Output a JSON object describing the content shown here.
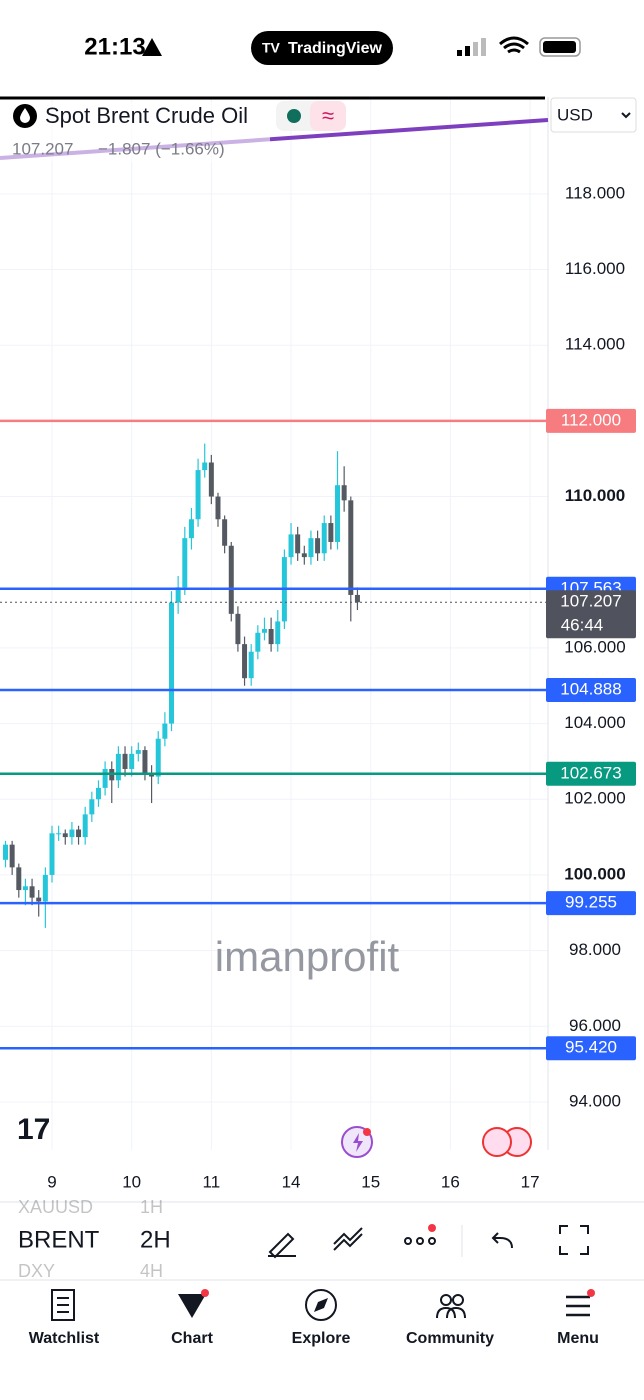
{
  "status_bar": {
    "time": "21:13",
    "app": "TradingView"
  },
  "header": {
    "symbol": "Spot Brent Crude Oil",
    "last": "107.207",
    "change": "−1.807 (−1.66%)",
    "currency": "USD"
  },
  "watermark": "imanprofit",
  "chart_data": {
    "type": "candlestick",
    "x": [
      -7,
      -6,
      -5,
      -4,
      -3,
      -2,
      -1,
      0,
      1,
      2,
      3,
      4,
      5,
      6,
      7,
      8,
      9,
      10,
      11,
      12,
      13,
      14,
      15,
      16,
      17,
      18,
      19,
      20,
      21,
      22,
      23,
      24,
      25,
      26,
      27,
      28,
      29,
      30,
      31,
      32,
      33,
      34,
      35,
      36,
      37,
      38,
      39,
      40,
      41,
      42,
      43,
      44,
      45,
      46
    ],
    "open": [
      100.4,
      100.8,
      100.2,
      99.6,
      99.7,
      99.4,
      99.3,
      100.0,
      101.1,
      101.1,
      101.0,
      101.2,
      101.0,
      101.6,
      102.0,
      102.3,
      102.8,
      102.5,
      103.2,
      102.8,
      103.2,
      103.3,
      102.7,
      102.6,
      103.6,
      104.0,
      107.2,
      107.6,
      108.9,
      109.4,
      110.7,
      110.9,
      110.0,
      109.4,
      108.7,
      106.9,
      106.1,
      105.2,
      105.9,
      106.4,
      106.5,
      106.1,
      106.7,
      108.4,
      109.0,
      108.5,
      108.4,
      108.9,
      108.5,
      109.3,
      108.8,
      110.3,
      109.9,
      107.4
    ],
    "high": [
      100.9,
      100.9,
      100.3,
      99.9,
      99.9,
      99.6,
      100.2,
      101.3,
      101.3,
      101.2,
      101.4,
      101.3,
      101.8,
      102.2,
      102.5,
      103.0,
      103.0,
      103.4,
      103.4,
      103.4,
      103.5,
      103.4,
      102.9,
      103.8,
      104.3,
      107.5,
      107.9,
      109.2,
      109.7,
      111.0,
      111.4,
      111.1,
      110.1,
      109.5,
      108.8,
      107.1,
      106.3,
      106.1,
      106.6,
      106.8,
      106.8,
      107.0,
      108.6,
      109.3,
      109.2,
      108.7,
      109.1,
      109.1,
      109.5,
      109.5,
      111.2,
      110.8,
      110.0,
      107.6
    ],
    "low": [
      100.2,
      100.0,
      99.4,
      99.2,
      99.2,
      98.9,
      98.6,
      99.8,
      100.9,
      100.8,
      100.8,
      100.8,
      100.8,
      101.4,
      101.8,
      102.1,
      101.9,
      102.3,
      102.6,
      102.6,
      103.0,
      102.5,
      101.9,
      102.4,
      103.4,
      103.8,
      106.9,
      107.4,
      108.6,
      109.2,
      110.5,
      109.8,
      109.2,
      108.5,
      106.7,
      105.9,
      105.0,
      105.0,
      105.7,
      106.2,
      105.9,
      105.9,
      106.5,
      108.2,
      108.3,
      108.2,
      108.2,
      108.3,
      108.3,
      108.6,
      108.6,
      109.6,
      106.7,
      107.0
    ],
    "close": [
      100.8,
      100.2,
      99.6,
      99.7,
      99.4,
      99.3,
      100.0,
      101.1,
      101.1,
      101.0,
      101.2,
      101.0,
      101.6,
      102.0,
      102.3,
      102.8,
      102.5,
      103.2,
      102.8,
      103.2,
      103.3,
      102.7,
      102.6,
      103.6,
      104.0,
      107.2,
      107.6,
      108.9,
      109.4,
      110.7,
      110.9,
      110.0,
      109.4,
      108.7,
      106.9,
      106.1,
      105.2,
      105.9,
      106.4,
      106.5,
      106.1,
      106.7,
      108.4,
      109.0,
      108.5,
      108.4,
      108.9,
      108.5,
      109.3,
      108.8,
      110.3,
      109.9,
      107.4,
      107.207
    ],
    "up_color": "#26c6da",
    "down_color": "#555a62",
    "xlim": [
      -7.83,
      74.7
    ],
    "xticks": [
      {
        "value": 0,
        "label": "9"
      },
      {
        "value": 12,
        "label": "10"
      },
      {
        "value": 24,
        "label": "11"
      },
      {
        "value": 36,
        "label": "14"
      },
      {
        "value": 48,
        "label": "15"
      },
      {
        "value": 60,
        "label": "16"
      },
      {
        "value": 72,
        "label": "17"
      }
    ],
    "ylim": [
      92.73,
      120.56
    ],
    "yticks": [
      {
        "value": 94,
        "label": "94.000"
      },
      {
        "value": 96,
        "label": "96.000"
      },
      {
        "value": 98,
        "label": "98.000"
      },
      {
        "value": 100,
        "label": "100.000"
      },
      {
        "value": 102,
        "label": "102.000"
      },
      {
        "value": 104,
        "label": "104.000"
      },
      {
        "value": 106,
        "label": "106.000"
      },
      {
        "value": 110,
        "label": "110.000"
      },
      {
        "value": 114,
        "label": "114.000"
      },
      {
        "value": 116,
        "label": "116.000"
      },
      {
        "value": 118,
        "label": "118.000"
      }
    ],
    "grid": true,
    "levels": [
      {
        "value": 112,
        "label": "112.000",
        "color": "#f77c80"
      },
      {
        "value": 107.563,
        "label": "107.563",
        "color": "#2962ff"
      },
      {
        "value": 104.888,
        "label": "104.888",
        "color": "#2962ff"
      },
      {
        "value": 102.673,
        "label": "102.673",
        "color": "#089981"
      },
      {
        "value": 99.255,
        "label": "99.255",
        "color": "#2962ff"
      },
      {
        "value": 95.42,
        "label": "95.420",
        "color": "#2962ff"
      }
    ],
    "last_price": {
      "value": 107.207,
      "label": "107.207",
      "countdown": "46:44",
      "color": "#50535e"
    }
  },
  "toolbar": {
    "symbols": [
      {
        "name": "XAUUSD",
        "interval": "1H"
      },
      {
        "name": "BRENT",
        "interval": "2H"
      },
      {
        "name": "DXY",
        "interval": "4H"
      }
    ]
  },
  "nav": [
    "Watchlist",
    "Chart",
    "Explore",
    "Community",
    "Menu"
  ]
}
